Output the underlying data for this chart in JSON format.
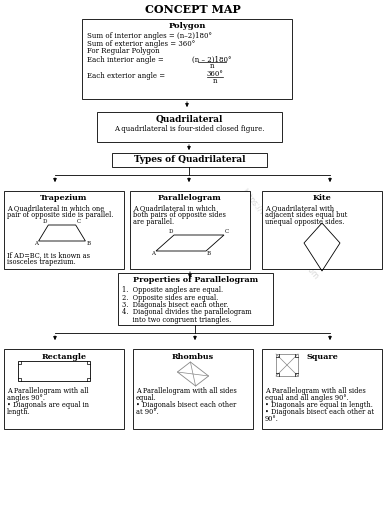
{
  "title": "CONCEPT MAP",
  "bg_color": "#ffffff",
  "box_edge": "#000000",
  "box_fill": "#ffffff",
  "polygon_title": "Polygon",
  "polygon_lines": [
    "Sum of interior angles = (n–2)180°",
    "Sum of exterior angles = 360°",
    "For Regular Polygon"
  ],
  "polygon_frac1_num": "(n – 2)180°",
  "polygon_frac1_pre": "Each interior angle = ",
  "polygon_frac1_den": "n",
  "polygon_frac2_num": "360°",
  "polygon_frac2_pre": "Each exterior angle = ",
  "polygon_frac2_den": "n",
  "quad_title": "Quadrilateral",
  "quad_line": "A quadrilateral is four-sided closed figure.",
  "types_title": "Types of Quadrilateral",
  "trap_title": "Trapezium",
  "trap_lines": [
    "A Quadrilateral in which one",
    "pair of opposite side is parallel."
  ],
  "trap_footer": [
    "If AD=BC, it is known as",
    "isosceles trapezium."
  ],
  "par_title": "Parallelogram",
  "par_lines": [
    "A Quadrilateral in which",
    "both pairs of opposite sides",
    "are parallel."
  ],
  "kite_title": "Kite",
  "kite_lines": [
    "A Quadrilateral with",
    "adjacent sides equal but",
    "unequal opposite sides."
  ],
  "prop_title": "Properties of Parallelogram",
  "prop_lines": [
    "1.  Opposite angles are equal.",
    "2.  Opposite sides are equal.",
    "3.  Diagonals bisect each other.",
    "4.  Diagonal divides the parallelogram",
    "     into two congruent triangles."
  ],
  "rect_title": "Rectangle",
  "rect_lines": [
    "A Parallelogram with all",
    "angles 90°.",
    "• Diagonals are equal in",
    "length."
  ],
  "rho_title": "Rhombus",
  "rho_lines": [
    "A Parallelogram with all sides",
    "equal.",
    "• Diagonals bisect each other",
    "at 90°."
  ],
  "sq_title": "Square",
  "sq_lines": [
    "A Parallelogram with all sides",
    "equal and all angles 90°.",
    "• Diagonals are equal in length.",
    "• Diagonals bisect each other at",
    "90°."
  ],
  "watermark": "https://www.studiestoday.com"
}
